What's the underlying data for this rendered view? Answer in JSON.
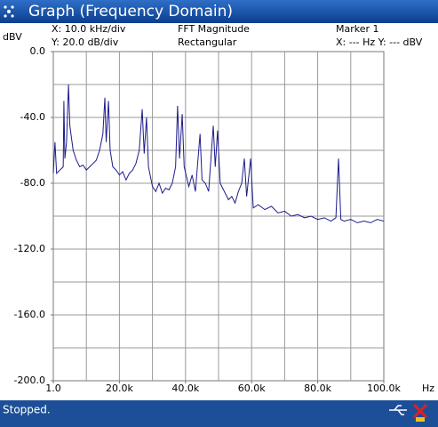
{
  "window": {
    "title": "Graph (Frequency Domain)"
  },
  "info": {
    "x_scale": "X: 10.0 kHz/div",
    "y_scale": "Y: 20.0 dB/div",
    "mode": "FFT Magnitude",
    "window_fn": "Rectangular",
    "marker": "Marker 1",
    "marker_readout": "X: --- Hz Y: --- dBV"
  },
  "status": "Stopped.",
  "chart_data": {
    "type": "line",
    "ylabel": "dBV",
    "xlabel": "Hz",
    "color": "#1c1c8a",
    "xlim": [
      1,
      100000
    ],
    "ylim": [
      -200,
      0
    ],
    "xticks": [
      {
        "value": 1,
        "label": "1.0"
      },
      {
        "value": 20000,
        "label": "20.0k"
      },
      {
        "value": 40000,
        "label": "40.0k"
      },
      {
        "value": 60000,
        "label": "60.0k"
      },
      {
        "value": 80000,
        "label": "80.0k"
      },
      {
        "value": 100000,
        "label": "100.0k"
      }
    ],
    "yticks": [
      {
        "value": 0,
        "label": "0.0"
      },
      {
        "value": -40,
        "label": "-40.0"
      },
      {
        "value": -80,
        "label": "-80.0"
      },
      {
        "value": -120,
        "label": "-120.0"
      },
      {
        "value": -160,
        "label": "-160.0"
      },
      {
        "value": -200,
        "label": "-200.0"
      }
    ],
    "xgrid": [
      10000,
      20000,
      30000,
      40000,
      50000,
      60000,
      70000,
      80000,
      90000
    ],
    "ygrid": [
      -20,
      -40,
      -60,
      -80,
      -100,
      -120,
      -140,
      -160,
      -180
    ],
    "x": [
      1,
      500,
      1000,
      2000,
      3000,
      3200,
      3500,
      4000,
      4600,
      5000,
      6000,
      7000,
      8000,
      9000,
      10000,
      11000,
      12000,
      13000,
      14000,
      15000,
      15600,
      16000,
      16700,
      17200,
      18000,
      19000,
      20000,
      21000,
      22000,
      23000,
      24000,
      25000,
      26000,
      26900,
      27500,
      28200,
      28800,
      30000,
      31000,
      32000,
      33000,
      34000,
      35000,
      36000,
      37000,
      37600,
      38200,
      39000,
      39600,
      41000,
      42000,
      43000,
      44400,
      45000,
      46000,
      47000,
      48400,
      49000,
      49700,
      50500,
      52000,
      53000,
      54000,
      55000,
      56000,
      57000,
      57800,
      58500,
      59700,
      60500,
      62000,
      64000,
      66000,
      68000,
      70000,
      72000,
      74000,
      76000,
      78000,
      80000,
      82000,
      84000,
      85500,
      86300,
      87000,
      88000,
      90000,
      92000,
      94000,
      96000,
      98000,
      100000
    ],
    "values": [
      -74,
      -55,
      -74,
      -72,
      -70,
      -30,
      -65,
      -55,
      -20,
      -45,
      -60,
      -66,
      -70,
      -69,
      -72,
      -70,
      -68,
      -66,
      -60,
      -50,
      -28,
      -55,
      -30,
      -60,
      -70,
      -72,
      -75,
      -73,
      -78,
      -74,
      -72,
      -68,
      -60,
      -35,
      -62,
      -40,
      -70,
      -82,
      -85,
      -80,
      -86,
      -83,
      -84,
      -80,
      -70,
      -33,
      -65,
      -38,
      -70,
      -82,
      -75,
      -85,
      -50,
      -78,
      -80,
      -85,
      -45,
      -70,
      -48,
      -80,
      -86,
      -90,
      -88,
      -92,
      -85,
      -80,
      -65,
      -88,
      -65,
      -95,
      -93,
      -96,
      -94,
      -98,
      -97,
      -100,
      -99,
      -101,
      -100,
      -102,
      -101,
      -103,
      -101,
      -65,
      -102,
      -103,
      -102,
      -104,
      -103,
      -104,
      -102,
      -103
    ]
  }
}
